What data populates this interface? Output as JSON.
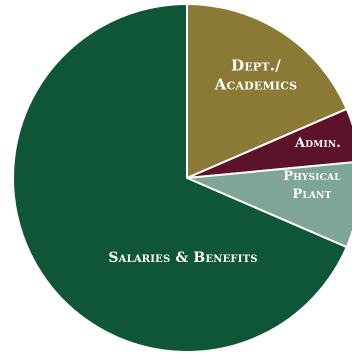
{
  "chart_data": {
    "type": "pie",
    "slices": [
      {
        "label": [
          "Dept./",
          "Academics"
        ],
        "value": 18.5,
        "color": "#8a7a35"
      },
      {
        "label": [
          "Admin."
        ],
        "value": 5.0,
        "color": "#5c1228"
      },
      {
        "label": [
          "Physical",
          "Plant"
        ],
        "value": 8.0,
        "color": "#7fa596"
      },
      {
        "label": [
          "Salaries & Benefits"
        ],
        "value": 68.5,
        "color": "#0e5637"
      }
    ],
    "start_angle_deg": 0,
    "direction": "clockwise",
    "legend": "none"
  }
}
